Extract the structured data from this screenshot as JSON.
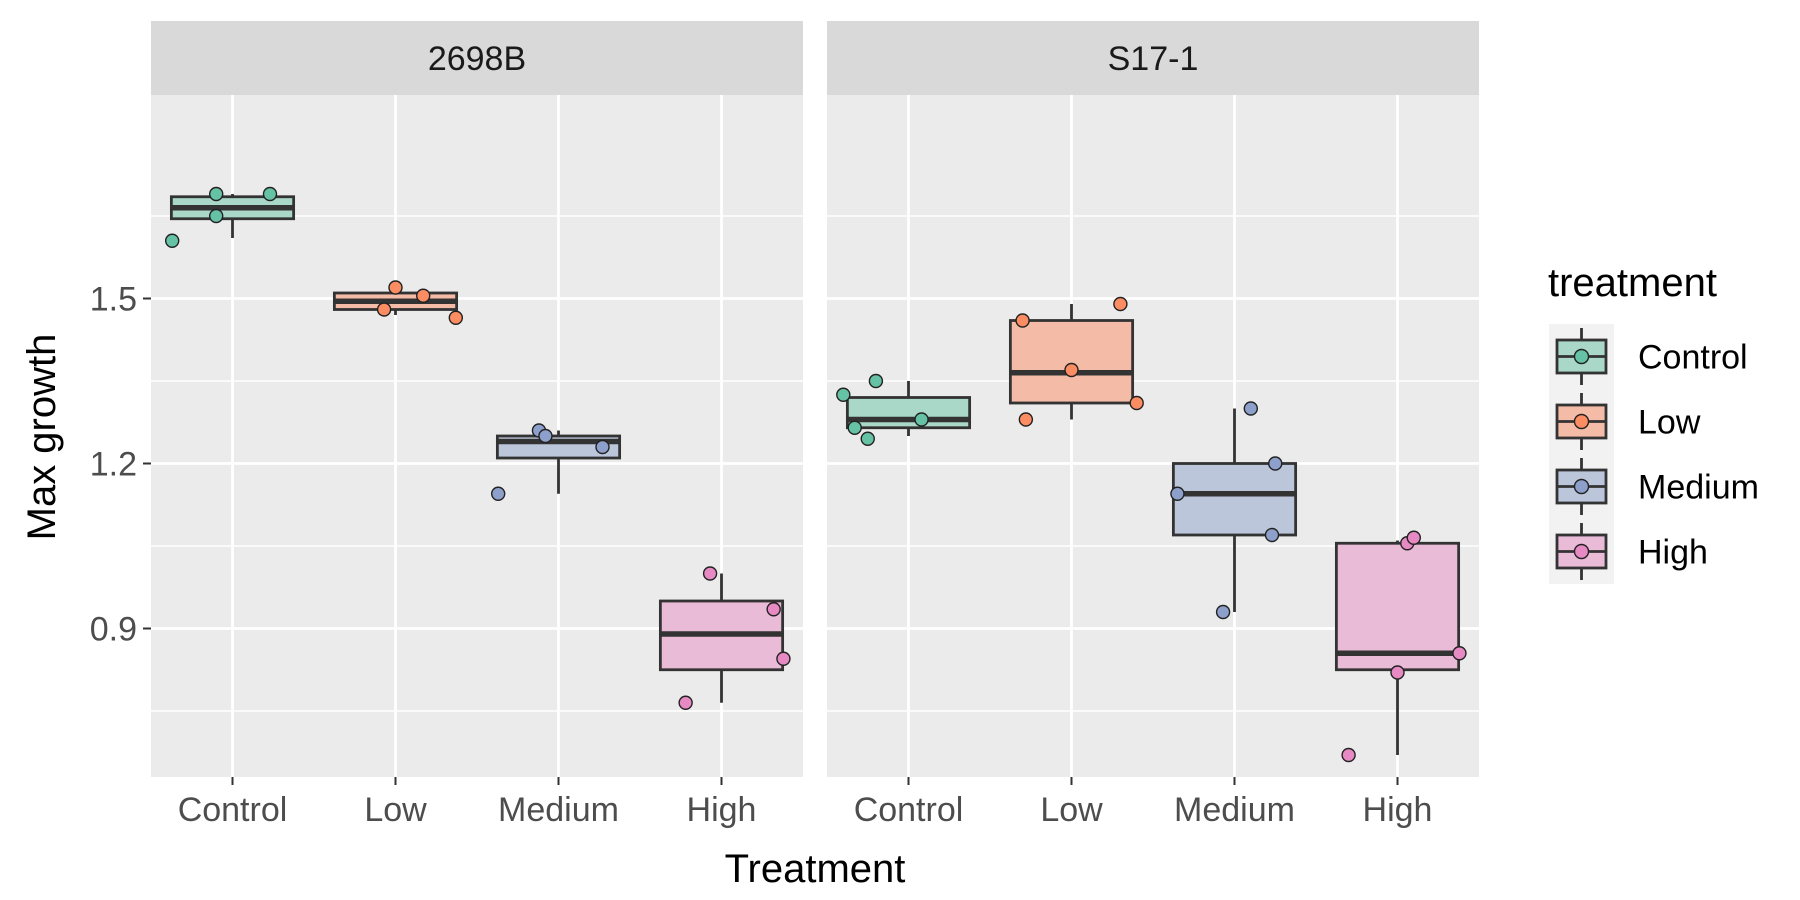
{
  "chart_data": {
    "type": "box",
    "xlabel": "Treatment",
    "ylabel": "Max growth",
    "ylim": [
      0.63,
      1.87
    ],
    "yticks": [
      0.9,
      1.2,
      1.5
    ],
    "ytick_labels": [
      "0.9",
      "1.2",
      "1.5"
    ],
    "categories": [
      "Control",
      "Low",
      "Medium",
      "High"
    ],
    "legend": {
      "title": "treatment",
      "position": "right",
      "entries": [
        "Control",
        "Low",
        "Medium",
        "High"
      ]
    },
    "colors": {
      "Control": "#66c2a5",
      "Low": "#fc8d62",
      "Medium": "#8da0cb",
      "High": "#e78ac3"
    },
    "panels": [
      {
        "strip": "2698B",
        "groups": [
          {
            "category": "Control",
            "min": 1.61,
            "q1": 1.645,
            "median": 1.665,
            "q3": 1.685,
            "max": 1.69,
            "points": [
              [
                -0.37,
                1.605
              ],
              [
                -0.1,
                1.65
              ],
              [
                -0.1,
                1.69
              ],
              [
                0.23,
                1.69
              ]
            ]
          },
          {
            "category": "Low",
            "min": 1.47,
            "q1": 1.48,
            "median": 1.495,
            "q3": 1.51,
            "max": 1.52,
            "points": [
              [
                -0.07,
                1.48
              ],
              [
                0.0,
                1.52
              ],
              [
                0.17,
                1.505
              ],
              [
                0.37,
                1.465
              ]
            ]
          },
          {
            "category": "Medium",
            "min": 1.145,
            "q1": 1.21,
            "median": 1.24,
            "q3": 1.25,
            "max": 1.26,
            "points": [
              [
                -0.37,
                1.145
              ],
              [
                -0.12,
                1.26
              ],
              [
                -0.08,
                1.25
              ],
              [
                0.27,
                1.23
              ]
            ]
          },
          {
            "category": "High",
            "min": 0.765,
            "q1": 0.825,
            "median": 0.89,
            "q3": 0.95,
            "max": 1.0,
            "points": [
              [
                -0.22,
                0.765
              ],
              [
                -0.07,
                1.0
              ],
              [
                0.32,
                0.935
              ],
              [
                0.38,
                0.845
              ]
            ]
          }
        ]
      },
      {
        "strip": "S17-1",
        "groups": [
          {
            "category": "Control",
            "min": 1.25,
            "q1": 1.265,
            "median": 1.28,
            "q3": 1.32,
            "max": 1.35,
            "points": [
              [
                -0.4,
                1.325
              ],
              [
                -0.33,
                1.265
              ],
              [
                -0.25,
                1.245
              ],
              [
                -0.2,
                1.35
              ],
              [
                0.08,
                1.28
              ]
            ]
          },
          {
            "category": "Low",
            "min": 1.28,
            "q1": 1.31,
            "median": 1.365,
            "q3": 1.46,
            "max": 1.49,
            "points": [
              [
                -0.3,
                1.46
              ],
              [
                -0.28,
                1.28
              ],
              [
                0.0,
                1.37
              ],
              [
                0.3,
                1.49
              ],
              [
                0.4,
                1.31
              ]
            ]
          },
          {
            "category": "Medium",
            "min": 0.93,
            "q1": 1.07,
            "median": 1.145,
            "q3": 1.2,
            "max": 1.3,
            "points": [
              [
                -0.35,
                1.145
              ],
              [
                -0.07,
                0.93
              ],
              [
                0.1,
                1.3
              ],
              [
                0.23,
                1.07
              ],
              [
                0.25,
                1.2
              ]
            ]
          },
          {
            "category": "High",
            "min": 0.67,
            "q1": 0.825,
            "median": 0.855,
            "q3": 1.055,
            "max": 1.06,
            "points": [
              [
                -0.3,
                0.67
              ],
              [
                0.0,
                0.82
              ],
              [
                0.06,
                1.055
              ],
              [
                0.1,
                1.065
              ],
              [
                0.38,
                0.855
              ]
            ]
          }
        ]
      }
    ]
  }
}
